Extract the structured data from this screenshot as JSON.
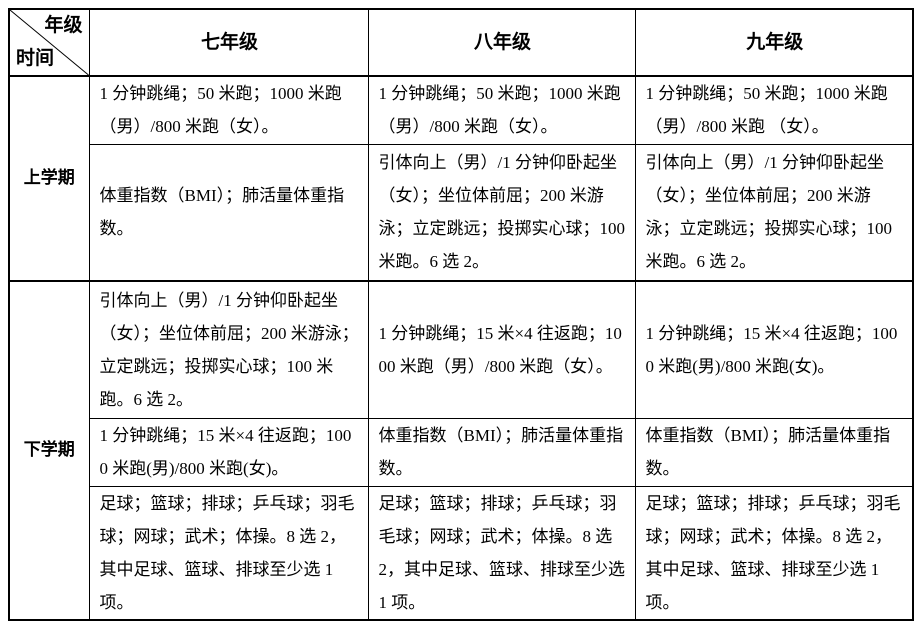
{
  "header": {
    "corner_grade": "年级",
    "corner_time": "时间",
    "grades": [
      "七年级",
      "八年级",
      "九年级"
    ]
  },
  "terms": {
    "first": "上学期",
    "second": "下学期"
  },
  "rows": [
    [
      "1 分钟跳绳；50 米跑；1000 米跑（男）/800 米跑（女）。",
      "1 分钟跳绳；50 米跑；1000 米跑（男）/800 米跑（女）。",
      "1 分钟跳绳；50 米跑；1000 米跑（男）/800 米跑 （女）。"
    ],
    [
      "体重指数（BMI）；肺活量体重指数。",
      "引体向上（男）/1 分钟仰卧起坐（女）；坐位体前屈；200 米游泳；立定跳远；投掷实心球；100 米跑。6 选 2。",
      "引体向上（男）/1 分钟仰卧起坐（女）；坐位体前屈；200 米游泳；立定跳远；投掷实心球；100 米跑。6 选 2。"
    ],
    [
      "引体向上（男）/1 分钟仰卧起坐（女）；坐位体前屈；200 米游泳；立定跳远；投掷实心球；100 米跑。6 选 2。",
      "1 分钟跳绳；15 米×4 往返跑；1000 米跑（男）/800 米跑（女）。",
      "1 分钟跳绳；15 米×4 往返跑；1000 米跑(男)/800 米跑(女)。"
    ],
    [
      "1 分钟跳绳；15 米×4 往返跑；1000 米跑(男)/800 米跑(女)。",
      "体重指数（BMI）；肺活量体重指数。",
      "体重指数（BMI）；肺活量体重指数。"
    ],
    [
      "足球；篮球；排球；乒乓球；羽毛球；网球；武术；体操。8 选 2，其中足球、篮球、排球至少选 1 项。",
      "足球；篮球；排球；乒乓球；羽毛球；网球；武术；体操。8 选 2，其中足球、篮球、排球至少选 1 项。",
      "足球；篮球；排球；乒乓球；羽毛球；网球；武术；体操。8 选 2，其中足球、篮球、排球至少选 1 项。"
    ]
  ]
}
